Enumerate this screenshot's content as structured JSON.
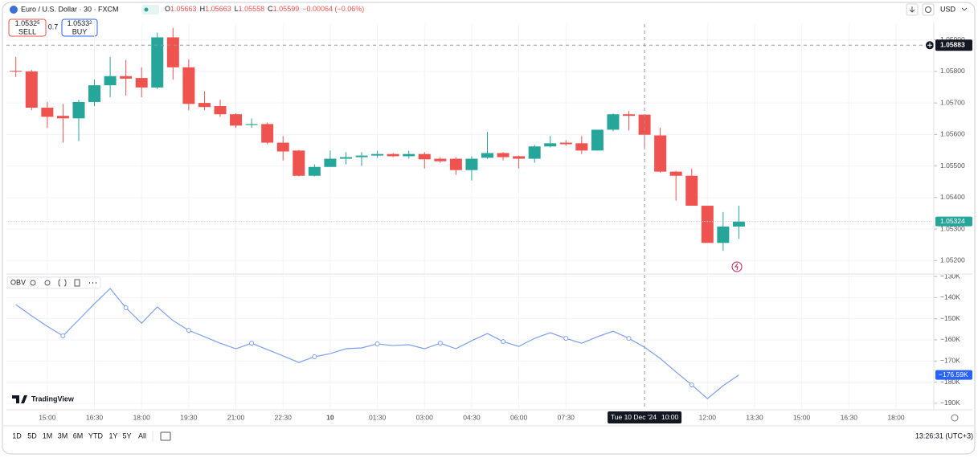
{
  "header": {
    "symbol": "Euro / U.S. Dollar · 30 · FXCM",
    "ohlc": [
      {
        "key": "O",
        "value": 1.05663
      },
      {
        "key": "H",
        "value": 1.05663
      },
      {
        "key": "L",
        "value": 1.05558
      },
      {
        "key": "C",
        "value": 1.05599
      }
    ],
    "change": "−0.00064 (−0.06%)",
    "sell": {
      "price": "1.0532",
      "pip": "5",
      "label": "SELL"
    },
    "spread": "0.7",
    "buy": {
      "price": "1.0533",
      "pip": "2",
      "label": "BUY"
    },
    "currency": "USD"
  },
  "crosshair": {
    "price": 1.05883,
    "time": "2024-12-10T10:00",
    "time_label": "Tue 10 Dec '24",
    "time_clock": "10:00"
  },
  "branding": "TradingView",
  "toolbar": {
    "ranges": [
      "1D",
      "5D",
      "1M",
      "3M",
      "6M",
      "YTD",
      "1Y",
      "5Y",
      "All"
    ],
    "clock": "13:26:31 (UTC+3)"
  },
  "chart_data": [
    {
      "type": "candlestick",
      "up_color": "#26a69a",
      "down_color": "#ef5350",
      "x": [
        "2024-12-09T14:00",
        "2024-12-09T14:30",
        "2024-12-09T15:00",
        "2024-12-09T15:30",
        "2024-12-09T16:00",
        "2024-12-09T16:30",
        "2024-12-09T17:00",
        "2024-12-09T17:30",
        "2024-12-09T18:00",
        "2024-12-09T18:30",
        "2024-12-09T19:00",
        "2024-12-09T19:30",
        "2024-12-09T20:00",
        "2024-12-09T20:30",
        "2024-12-09T21:00",
        "2024-12-09T21:30",
        "2024-12-09T22:00",
        "2024-12-09T22:30",
        "2024-12-09T23:00",
        "2024-12-09T23:30",
        "2024-12-10T00:00",
        "2024-12-10T00:30",
        "2024-12-10T01:00",
        "2024-12-10T01:30",
        "2024-12-10T02:00",
        "2024-12-10T02:30",
        "2024-12-10T03:00",
        "2024-12-10T03:30",
        "2024-12-10T04:00",
        "2024-12-10T04:30",
        "2024-12-10T05:00",
        "2024-12-10T05:30",
        "2024-12-10T06:00",
        "2024-12-10T06:30",
        "2024-12-10T07:00",
        "2024-12-10T07:30",
        "2024-12-10T08:00",
        "2024-12-10T08:30",
        "2024-12-10T09:00",
        "2024-12-10T09:30",
        "2024-12-10T10:00",
        "2024-12-10T10:30",
        "2024-12-10T11:00",
        "2024-12-10T11:30",
        "2024-12-10T12:00",
        "2024-12-10T12:30",
        "2024-12-10T13:00"
      ],
      "open": [
        1.05802,
        1.058,
        1.05685,
        1.05659,
        1.05651,
        1.05703,
        1.05756,
        1.05785,
        1.05779,
        1.05749,
        1.05908,
        1.05813,
        1.057,
        1.0569,
        1.05664,
        1.0563,
        1.05633,
        1.05574,
        1.05549,
        1.05469,
        1.05497,
        1.05523,
        1.05528,
        1.05533,
        1.05538,
        1.05531,
        1.05538,
        1.05523,
        1.05523,
        1.05487,
        1.05526,
        1.05541,
        1.05531,
        1.05523,
        1.05562,
        1.05574,
        1.05572,
        1.05549,
        1.05615,
        1.05664,
        1.05663,
        1.05597,
        1.05482,
        1.05469,
        1.05374,
        1.05256,
        1.05308
      ],
      "high": [
        1.05846,
        1.05805,
        1.05703,
        1.05697,
        1.0571,
        1.05774,
        1.05846,
        1.05836,
        1.05813,
        1.05923,
        1.05938,
        1.05838,
        1.05736,
        1.0571,
        1.05667,
        1.05651,
        1.05638,
        1.05595,
        1.05551,
        1.05505,
        1.05549,
        1.05544,
        1.05544,
        1.05549,
        1.05541,
        1.05549,
        1.05544,
        1.05528,
        1.05528,
        1.05531,
        1.05608,
        1.05544,
        1.05533,
        1.05567,
        1.05595,
        1.05582,
        1.05595,
        1.05615,
        1.05667,
        1.05674,
        1.05663,
        1.05621,
        1.05485,
        1.05492,
        1.05374,
        1.05354,
        1.05374
      ],
      "low": [
        1.05782,
        1.05677,
        1.05621,
        1.05574,
        1.05579,
        1.0569,
        1.05718,
        1.05723,
        1.05718,
        1.05744,
        1.05774,
        1.05677,
        1.05677,
        1.05656,
        1.05621,
        1.05621,
        1.05569,
        1.05518,
        1.05467,
        1.05467,
        1.05497,
        1.05505,
        1.055,
        1.05526,
        1.05528,
        1.05523,
        1.05492,
        1.0551,
        1.05472,
        1.05454,
        1.05523,
        1.05518,
        1.05492,
        1.0551,
        1.05559,
        1.05564,
        1.05538,
        1.05549,
        1.0561,
        1.05613,
        1.05558,
        1.05479,
        1.0539,
        1.05374,
        1.05256,
        1.05231,
        1.05269
      ],
      "close": [
        1.058,
        1.05685,
        1.05656,
        1.05651,
        1.05703,
        1.05756,
        1.05785,
        1.05777,
        1.05749,
        1.05908,
        1.05813,
        1.05697,
        1.05687,
        1.05664,
        1.05628,
        1.05633,
        1.05574,
        1.05546,
        1.05469,
        1.05497,
        1.05523,
        1.05528,
        1.05533,
        1.05538,
        1.05531,
        1.05538,
        1.05521,
        1.05515,
        1.05487,
        1.05523,
        1.05541,
        1.05528,
        1.05523,
        1.05562,
        1.05572,
        1.05569,
        1.05549,
        1.05615,
        1.05664,
        1.05659,
        1.05599,
        1.05482,
        1.05469,
        1.05374,
        1.05256,
        1.05308,
        1.05324
      ],
      "xlim": [
        "2024-12-09T13:42",
        "2024-12-10T19:09"
      ],
      "xticks": [
        {
          "value": "2024-12-09T15:00",
          "label": "15:00"
        },
        {
          "value": "2024-12-09T16:30",
          "label": "16:30"
        },
        {
          "value": "2024-12-09T18:00",
          "label": "18:00"
        },
        {
          "value": "2024-12-09T19:30",
          "label": "19:30"
        },
        {
          "value": "2024-12-09T21:00",
          "label": "21:00"
        },
        {
          "value": "2024-12-09T22:30",
          "label": "22:30"
        },
        {
          "value": "2024-12-10T00:00",
          "label": "10"
        },
        {
          "value": "2024-12-10T01:30",
          "label": "01:30"
        },
        {
          "value": "2024-12-10T03:00",
          "label": "03:00"
        },
        {
          "value": "2024-12-10T04:30",
          "label": "04:30"
        },
        {
          "value": "2024-12-10T06:00",
          "label": "06:00"
        },
        {
          "value": "2024-12-10T07:30",
          "label": "07:30"
        },
        {
          "value": "2024-12-10T12:00",
          "label": "12:00"
        },
        {
          "value": "2024-12-10T13:30",
          "label": "13:30"
        },
        {
          "value": "2024-12-10T15:00",
          "label": "15:00"
        },
        {
          "value": "2024-12-10T16:30",
          "label": "16:30"
        },
        {
          "value": "2024-12-10T18:00",
          "label": "18:00"
        }
      ],
      "ylim": [
        1.0516,
        1.0595
      ],
      "yticks": [
        {
          "value": 1.052,
          "label": "1.05200"
        },
        {
          "value": 1.053,
          "label": "1.05300"
        },
        {
          "value": 1.054,
          "label": "1.05400"
        },
        {
          "value": 1.055,
          "label": "1.05500"
        },
        {
          "value": 1.056,
          "label": "1.05600"
        },
        {
          "value": 1.057,
          "label": "1.05700"
        },
        {
          "value": 1.058,
          "label": "1.05800"
        },
        {
          "value": 1.059,
          "label": "1.05900"
        }
      ],
      "grid": true
    },
    {
      "type": "line",
      "legend": "OBV",
      "color": "#7b9ff2",
      "label_color": "#2962ff",
      "values": [
        -143300,
        -148600,
        -153600,
        -158100,
        -150500,
        -142900,
        -135700,
        -144800,
        -152100,
        -144400,
        -150900,
        -155500,
        -158500,
        -161600,
        -164200,
        -161600,
        -164600,
        -167600,
        -170700,
        -168000,
        -166500,
        -164200,
        -163800,
        -161900,
        -162700,
        -162300,
        -164200,
        -161600,
        -164200,
        -160400,
        -157000,
        -160800,
        -163100,
        -159300,
        -156600,
        -159300,
        -161600,
        -158500,
        -155900,
        -159300,
        -163500,
        -168800,
        -175200,
        -181300,
        -187800,
        -181700,
        -176590
      ],
      "last_value_label": "−176.59K",
      "ylim": [
        -193100,
        -129200
      ],
      "yticks": [
        {
          "value": -130000,
          "label": "−130K"
        },
        {
          "value": -140000,
          "label": "−140K"
        },
        {
          "value": -150000,
          "label": "−150K"
        },
        {
          "value": -160000,
          "label": "−160K"
        },
        {
          "value": -170000,
          "label": "−170K"
        },
        {
          "value": -180000,
          "label": "−180K"
        },
        {
          "value": -190000,
          "label": "−190K"
        }
      ],
      "grid": true
    }
  ]
}
